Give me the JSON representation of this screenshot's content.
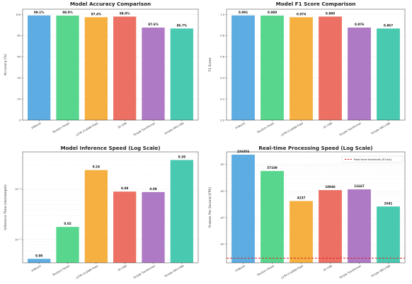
{
  "colors": [
    "#5dade2",
    "#58d68d",
    "#f5b041",
    "#ec7063",
    "#af7ac5",
    "#48c9b0"
  ],
  "threshold_color": "#d62728",
  "chart_data": [
    {
      "type": "bar",
      "title": "Model Accuracy Comparison",
      "ylabel": "Accuracy (%)",
      "xlabel": "",
      "categories": [
        "XGBoost",
        "Random Forest",
        "LSTM (CuDNN-Free)",
        "1D CNN",
        "Simple Transformer",
        "Simple GRU-CNN"
      ],
      "values": [
        99.1,
        98.9,
        97.4,
        98.0,
        87.6,
        86.7
      ],
      "value_labels": [
        "99.1%",
        "98.9%",
        "97.4%",
        "98.0%",
        "87.6%",
        "86.7%"
      ],
      "ylim": [
        0,
        105
      ],
      "yticks": [
        0,
        20,
        40,
        60,
        80,
        100
      ],
      "ytick_labels": [
        "0",
        "20",
        "40",
        "60",
        "80",
        "100"
      ],
      "scale": "linear",
      "grid": true
    },
    {
      "type": "bar",
      "title": "Model F1 Score Comparison",
      "ylabel": "F1 Score",
      "xlabel": "",
      "categories": [
        "XGBoost",
        "Random Forest",
        "LSTM (CuDNN-Free)",
        "1D CNN",
        "Simple Transformer",
        "Simple GRU-CNN"
      ],
      "values": [
        0.991,
        0.989,
        0.974,
        0.98,
        0.876,
        0.867
      ],
      "value_labels": [
        "0.991",
        "0.989",
        "0.974",
        "0.980",
        "0.876",
        "0.867"
      ],
      "ylim": [
        0,
        1.05
      ],
      "yticks": [
        0,
        0.2,
        0.4,
        0.6,
        0.8,
        1.0
      ],
      "ytick_labels": [
        "0.0",
        "0.2",
        "0.4",
        "0.6",
        "0.8",
        "1.0"
      ],
      "scale": "linear",
      "grid": true
    },
    {
      "type": "bar",
      "title": "Model Inference Speed (Log Scale)",
      "ylabel": "Inference Time (ms/sample)",
      "xlabel": "",
      "categories": [
        "XGBoost",
        "Random Forest",
        "LSTM (CuDNN-Free)",
        "1D CNN",
        "Simple Transformer",
        "Simple GRU-CNN"
      ],
      "values": [
        0.0042,
        0.018,
        0.24,
        0.09,
        0.088,
        0.38
      ],
      "value_labels": [
        "0.00",
        "0.02",
        "0.24",
        "0.09",
        "0.09",
        "0.38"
      ],
      "ylim": [
        0.0035,
        0.55
      ],
      "yticks": [
        0.01,
        0.1
      ],
      "ytick_labels": [
        "10⁻²",
        "10⁻¹"
      ],
      "scale": "log",
      "grid": true
    },
    {
      "type": "bar",
      "title": "Real-time Processing Speed (Log Scale)",
      "ylabel": "Frames Per Second (FPS)",
      "xlabel": "",
      "categories": [
        "XGBoost",
        "Random Forest",
        "LSTM (CuDNN-Free)",
        "1D CNN",
        "Simple Transformer",
        "Simple GRU-CNN"
      ],
      "values": [
        236056,
        57109,
        4237,
        10946,
        11667,
        2641
      ],
      "value_labels": [
        "236056",
        "57109",
        "4237",
        "10946",
        "11667",
        "2641"
      ],
      "ylim": [
        20,
        300000
      ],
      "yticks": [
        100,
        1000,
        10000,
        100000
      ],
      "ytick_labels": [
        "10²",
        "10³",
        "10⁴",
        "10⁵"
      ],
      "scale": "log",
      "grid": true,
      "threshold": {
        "value": 30,
        "label": "Real-time threshold (30 fps)"
      },
      "legend": "top-right"
    }
  ]
}
